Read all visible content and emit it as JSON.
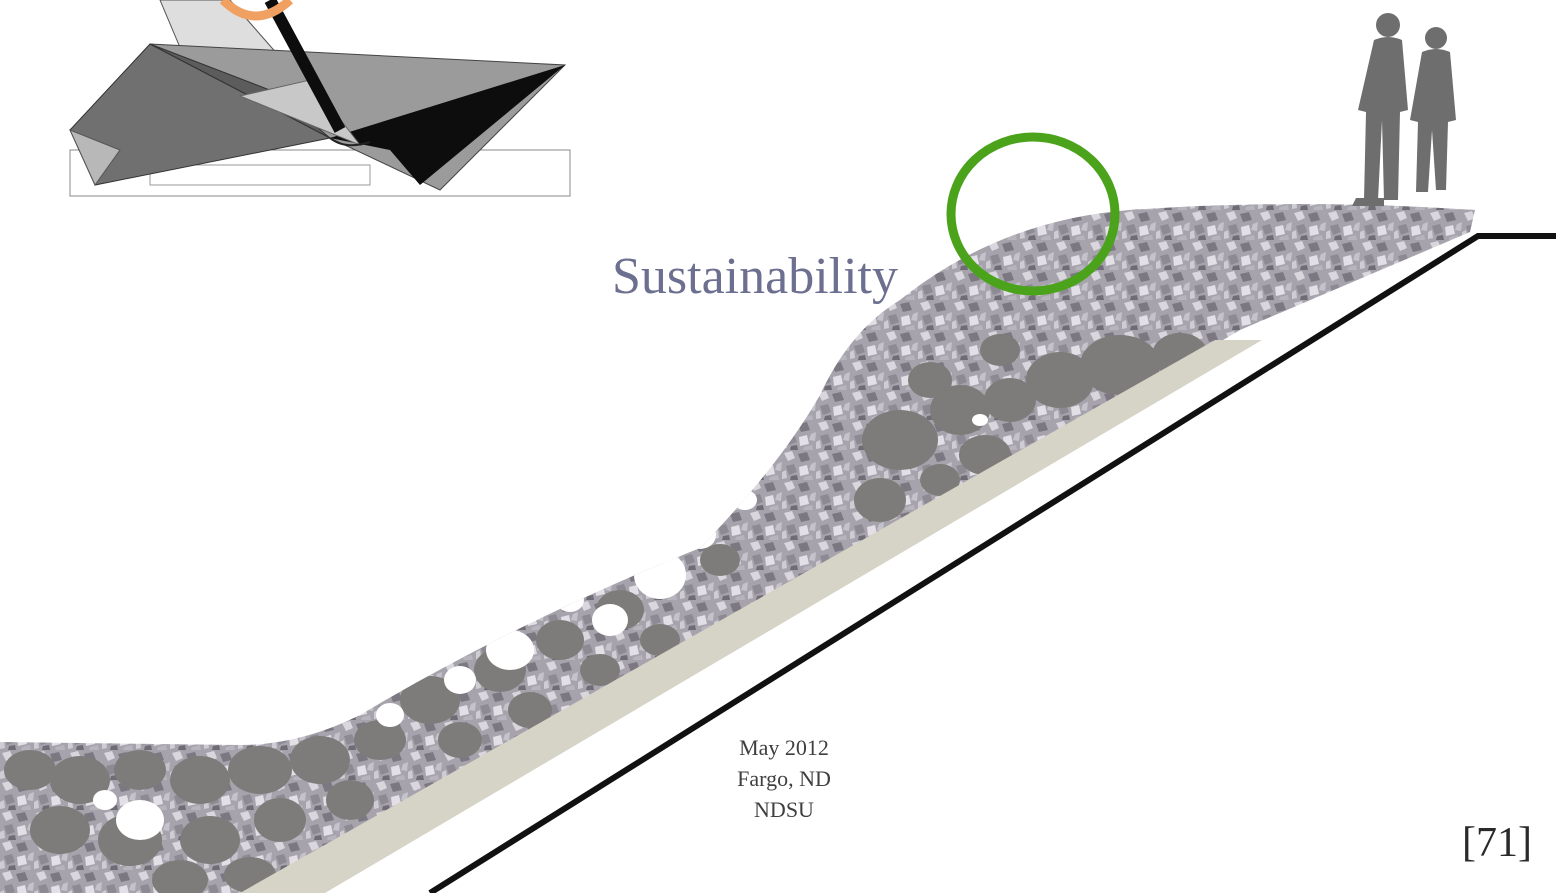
{
  "slide": {
    "title": "Sustainability",
    "info_lines": [
      "May 2012",
      "Fargo, ND",
      "NDSU"
    ],
    "page_number": "[71]"
  },
  "colors": {
    "title": "#6c6f8f",
    "green_circle": "#4aa31a",
    "orange_circle": "#f0a060",
    "concrete_base": "#d6d3c7",
    "outline": "#111111"
  },
  "icons": {
    "people": "standing-people-silhouette-icon",
    "model": "folded-canopy-model"
  }
}
